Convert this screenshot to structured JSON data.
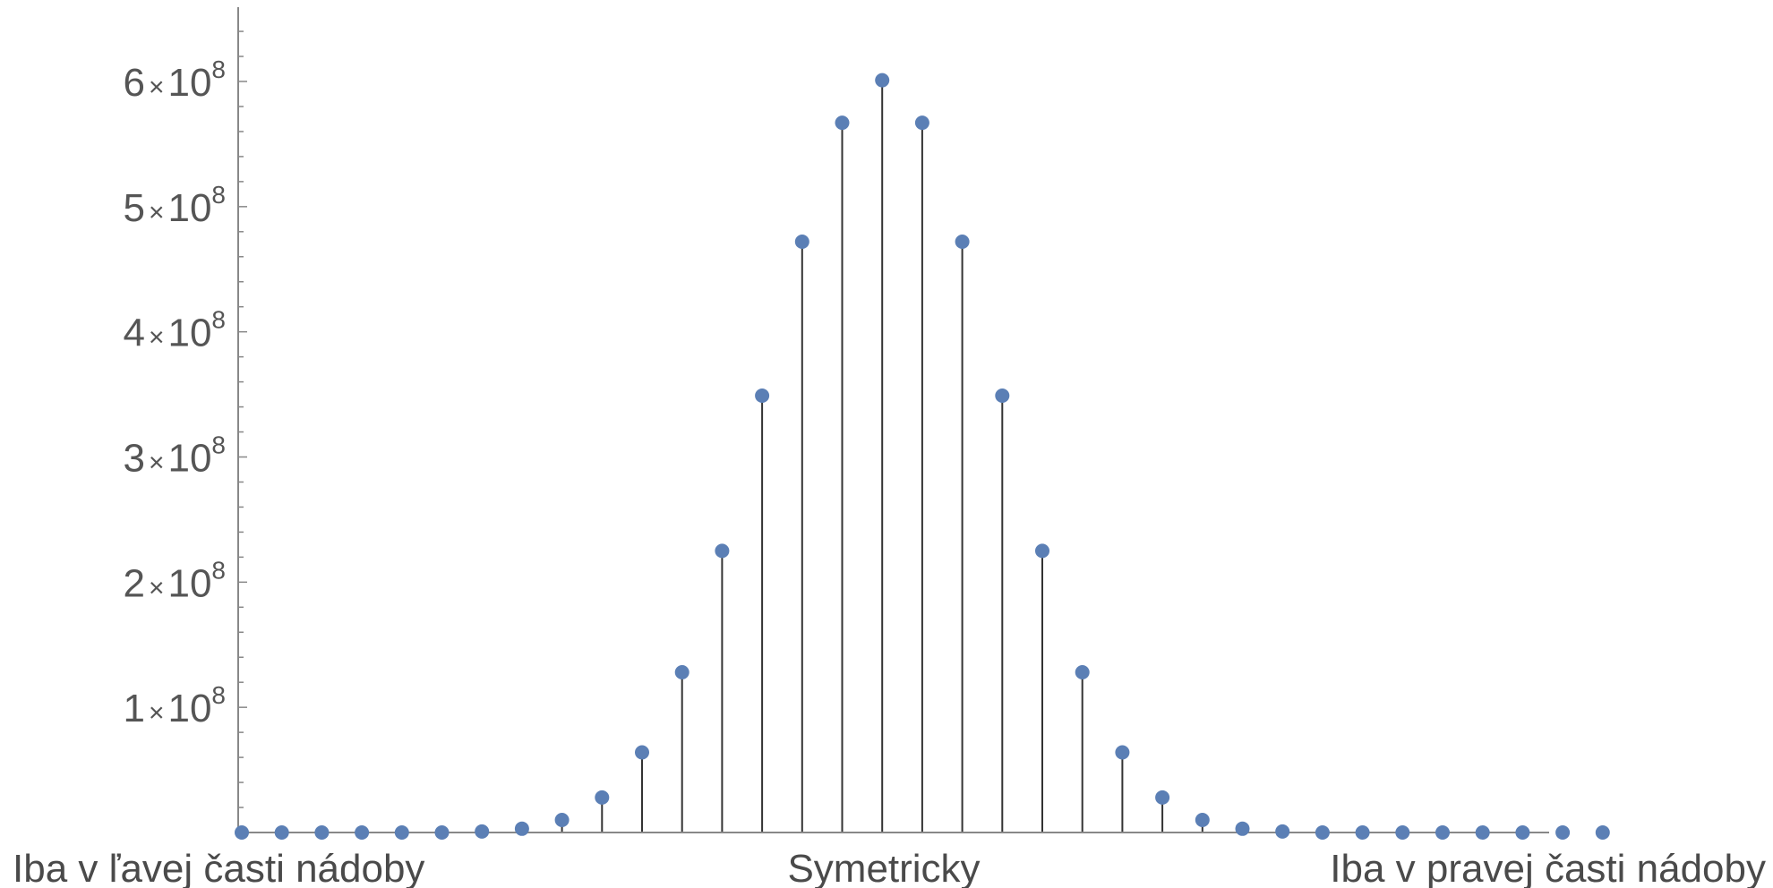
{
  "chart_data": {
    "type": "stem",
    "title": "",
    "xlabel": "",
    "ylabel": "",
    "x": [
      0,
      1,
      2,
      3,
      4,
      5,
      6,
      7,
      8,
      9,
      10,
      11,
      12,
      13,
      14,
      15,
      16,
      17,
      18,
      19,
      20,
      21,
      22,
      23,
      24,
      25,
      26,
      27,
      28,
      29,
      30,
      31,
      32,
      33,
      34
    ],
    "series": [
      {
        "values": [
          0,
          0,
          0,
          0,
          0,
          0,
          800000,
          3000000,
          10000000,
          28000000,
          64000000,
          128000000,
          225000000,
          349000000,
          472000000,
          567000000,
          601000000,
          567000000,
          472000000,
          349000000,
          225000000,
          128000000,
          64000000,
          28000000,
          10000000,
          3000000,
          800000,
          0,
          0,
          0,
          0,
          0,
          0,
          0,
          0
        ]
      }
    ],
    "ylim": [
      0,
      660000000
    ],
    "y_ticks": [
      {
        "value": 100000000,
        "mantissa": "1",
        "times": "×",
        "base": "10",
        "exp": "8"
      },
      {
        "value": 200000000,
        "mantissa": "2",
        "times": "×",
        "base": "10",
        "exp": "8"
      },
      {
        "value": 300000000,
        "mantissa": "3",
        "times": "×",
        "base": "10",
        "exp": "8"
      },
      {
        "value": 400000000,
        "mantissa": "4",
        "times": "×",
        "base": "10",
        "exp": "8"
      },
      {
        "value": 500000000,
        "mantissa": "5",
        "times": "×",
        "base": "10",
        "exp": "8"
      },
      {
        "value": 600000000,
        "mantissa": "6",
        "times": "×",
        "base": "10",
        "exp": "8"
      }
    ],
    "category_labels": {
      "left": "Iba v ľavej časti nádoby",
      "center": "Symetricky",
      "right": "Iba v pravej časti nádoby"
    },
    "grid": false,
    "legend": "none",
    "colors": {
      "marker": "#5b7fb5",
      "stem": "#333333",
      "axis": "#888888",
      "text": "#4a4a4a"
    }
  }
}
